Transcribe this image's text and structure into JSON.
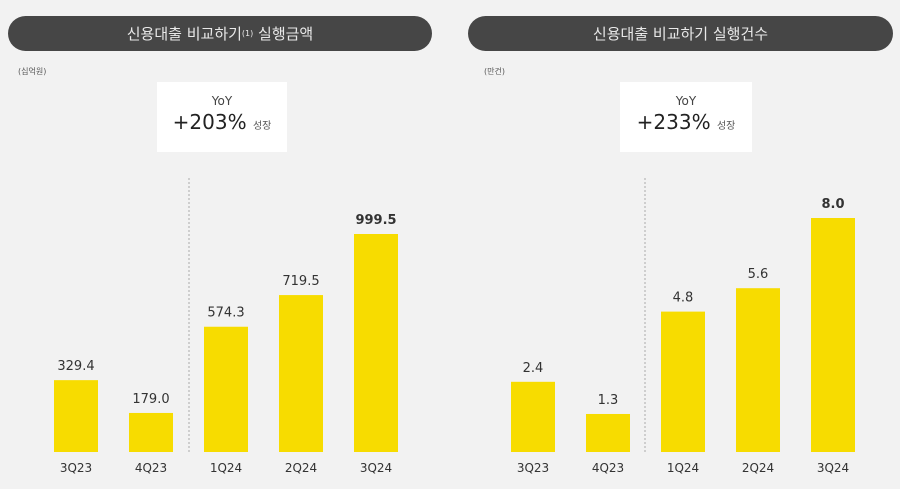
{
  "chart_data": [
    {
      "type": "bar",
      "title": "신용대출 비교하기",
      "title_sup": "(1)",
      "title_suffix": " 실행금액",
      "unit": "(십억원)",
      "callout": {
        "label": "YoY",
        "value": "+203%",
        "suffix": "성장"
      },
      "categories": [
        "3Q23",
        "4Q23",
        "1Q24",
        "2Q24",
        "3Q24"
      ],
      "values": [
        329.4,
        179.0,
        574.3,
        719.5,
        999.5
      ],
      "labels": [
        "329.4",
        "179.0",
        "574.3",
        "719.5",
        "999.5"
      ],
      "color": "#f7dc00",
      "divider_after": "4Q23"
    },
    {
      "type": "bar",
      "title": "신용대출 비교하기 실행건수",
      "unit": "(만건)",
      "callout": {
        "label": "YoY",
        "value": "+233%",
        "suffix": "성장"
      },
      "categories": [
        "3Q23",
        "4Q23",
        "1Q24",
        "2Q24",
        "3Q24"
      ],
      "values": [
        2.4,
        1.3,
        4.8,
        5.6,
        8.0
      ],
      "labels": [
        "2.4",
        "1.3",
        "4.8",
        "5.6",
        "8.0"
      ],
      "color": "#f7dc00",
      "divider_after": "4Q23"
    }
  ]
}
